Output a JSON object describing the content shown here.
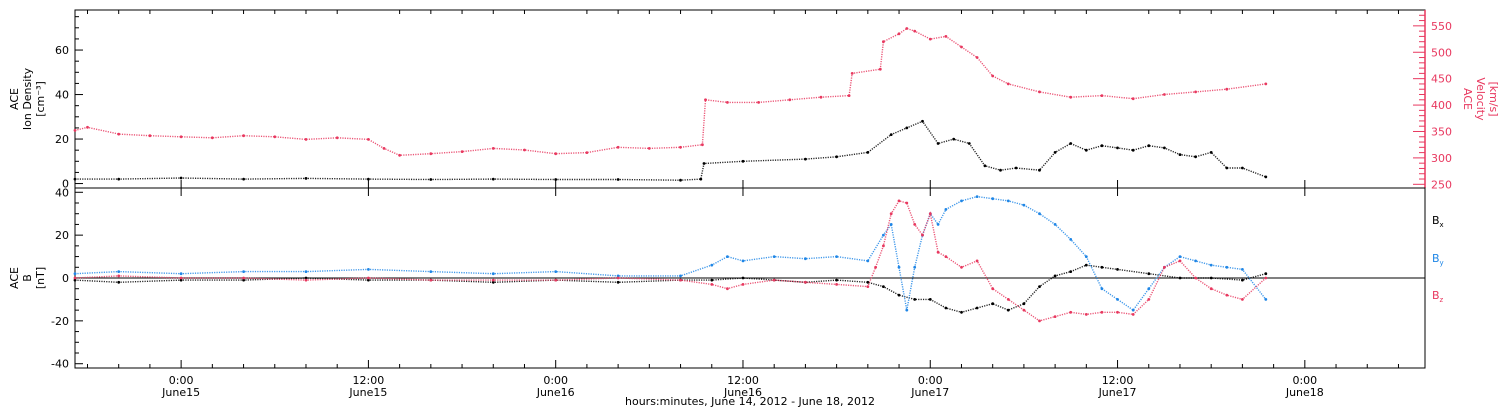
{
  "colors": {
    "axis": "#000000",
    "density": "#000000",
    "velocity": "#e8385f",
    "bx": "#000000",
    "by": "#1f86e6",
    "bz": "#e8385f"
  },
  "x_axis": {
    "title": "hours:minutes, June 14, 2012 - June 18, 2012",
    "range_hours": [
      -6.8,
      79.7
    ],
    "ticks": [
      {
        "t": 0,
        "time": "0:00",
        "date": "June15"
      },
      {
        "t": 12,
        "time": "12:00",
        "date": "June15"
      },
      {
        "t": 24,
        "time": "0:00",
        "date": "June16"
      },
      {
        "t": 36,
        "time": "12:00",
        "date": "June16"
      },
      {
        "t": 48,
        "time": "0:00",
        "date": "June17"
      },
      {
        "t": 60,
        "time": "12:00",
        "date": "June17"
      },
      {
        "t": 72,
        "time": "0:00",
        "date": "June18"
      }
    ]
  },
  "chart_data": [
    {
      "type": "scatter",
      "panel": "top",
      "left_axis": {
        "label_lines": [
          "ACE",
          "Ion Density",
          "[cm⁻³]"
        ],
        "ylim": [
          -2,
          78
        ],
        "ticks": [
          0,
          20,
          40,
          60
        ]
      },
      "right_axis": {
        "label_lines": [
          "ACE",
          "Velocity",
          "[km/s]"
        ],
        "ylim": [
          243,
          580
        ],
        "ticks": [
          250,
          300,
          350,
          400,
          450,
          500,
          550
        ]
      },
      "series": [
        {
          "key": "density",
          "axis": "left",
          "x": [
            -6.8,
            -4,
            0,
            4,
            8,
            12,
            16,
            20,
            24,
            28,
            32,
            33.3,
            33.5,
            36,
            40,
            42,
            44,
            45.5,
            46.5,
            47.5,
            48.5,
            49.5,
            50.5,
            51.5,
            52.5,
            53.5,
            55,
            56,
            57,
            58,
            59,
            60,
            61,
            62,
            63,
            64,
            65,
            66,
            67,
            68,
            69.5
          ],
          "y": [
            2,
            2,
            2.5,
            2,
            2.3,
            2,
            1.8,
            2,
            1.8,
            1.8,
            1.5,
            2,
            9,
            10,
            11,
            12,
            14,
            22,
            25,
            28,
            18,
            20,
            18,
            8,
            6,
            7,
            6,
            14,
            18,
            15,
            17,
            16,
            15,
            17,
            16,
            13,
            12,
            14,
            7,
            7,
            3
          ]
        },
        {
          "key": "velocity",
          "axis": "right",
          "x": [
            -6.8,
            -6,
            -4,
            -2,
            0,
            2,
            4,
            6,
            8,
            10,
            12,
            13,
            14,
            16,
            18,
            20,
            22,
            24,
            26,
            28,
            30,
            32,
            33.4,
            33.6,
            35,
            37,
            39,
            41,
            42.8,
            43,
            44.8,
            45,
            46,
            46.5,
            47,
            48,
            49,
            50,
            51,
            52,
            53,
            55,
            57,
            59,
            61,
            63,
            65,
            67,
            69.5
          ],
          "y": [
            352,
            358,
            345,
            342,
            340,
            338,
            342,
            340,
            335,
            338,
            335,
            318,
            305,
            308,
            312,
            318,
            315,
            308,
            310,
            320,
            318,
            320,
            325,
            410,
            405,
            405,
            410,
            415,
            418,
            460,
            468,
            520,
            535,
            545,
            540,
            525,
            530,
            510,
            490,
            455,
            440,
            425,
            415,
            418,
            412,
            420,
            425,
            430,
            440
          ]
        }
      ]
    },
    {
      "type": "scatter",
      "panel": "bottom",
      "left_axis": {
        "label_lines": [
          "ACE",
          "B",
          "[nT]"
        ],
        "ylim": [
          -42,
          42
        ],
        "ticks": [
          -40,
          -20,
          0,
          20,
          40
        ]
      },
      "zero_line": 0,
      "series": [
        {
          "key": "bx",
          "name": "B",
          "subscript": "x",
          "x": [
            -6.8,
            -4,
            0,
            4,
            8,
            12,
            16,
            20,
            24,
            28,
            32,
            34,
            36,
            38,
            40,
            42,
            44,
            45,
            46,
            47,
            48,
            49,
            50,
            51,
            52,
            53,
            54,
            55,
            56,
            57,
            58,
            59,
            60,
            62,
            64,
            66,
            68,
            69.5
          ],
          "y": [
            -1,
            -2,
            -1,
            -1,
            0,
            -1,
            -1,
            -2,
            -1,
            -2,
            -1,
            -1,
            0,
            -1,
            -2,
            -1,
            -2,
            -4,
            -8,
            -10,
            -10,
            -14,
            -16,
            -14,
            -12,
            -15,
            -12,
            -4,
            1,
            3,
            6,
            5,
            4,
            2,
            0,
            0,
            -1,
            2
          ]
        },
        {
          "key": "by",
          "name": "B",
          "subscript": "y",
          "x": [
            -6.8,
            -4,
            0,
            4,
            8,
            12,
            16,
            20,
            24,
            28,
            32,
            34,
            35,
            36,
            38,
            40,
            42,
            44,
            45,
            45.5,
            46,
            46.5,
            47,
            47.5,
            48,
            48.5,
            49,
            50,
            51,
            52,
            53,
            54,
            55,
            56,
            57,
            58,
            59,
            60,
            61,
            62,
            63,
            64,
            65,
            66,
            67,
            68,
            69.5
          ],
          "y": [
            2,
            3,
            2,
            3,
            3,
            4,
            3,
            2,
            3,
            1,
            1,
            6,
            10,
            8,
            10,
            9,
            10,
            8,
            20,
            25,
            5,
            -15,
            5,
            20,
            30,
            25,
            32,
            36,
            38,
            37,
            36,
            34,
            30,
            25,
            18,
            10,
            -5,
            -10,
            -15,
            -5,
            5,
            10,
            8,
            6,
            5,
            4,
            -10
          ]
        },
        {
          "key": "bz",
          "name": "B",
          "subscript": "z",
          "x": [
            -6.8,
            -4,
            0,
            4,
            8,
            12,
            16,
            20,
            24,
            28,
            32,
            34,
            35,
            36,
            38,
            40,
            42,
            44,
            44.5,
            45,
            45.5,
            46,
            46.5,
            47,
            47.5,
            48,
            48.5,
            49,
            50,
            51,
            52,
            53,
            54,
            55,
            56,
            57,
            58,
            59,
            60,
            61,
            62,
            63,
            64,
            65,
            66,
            67,
            68,
            69.5
          ],
          "y": [
            0,
            1,
            0,
            0,
            -1,
            0,
            -1,
            -1,
            -1,
            0,
            -1,
            -3,
            -5,
            -3,
            -1,
            -2,
            -3,
            -4,
            5,
            15,
            30,
            36,
            35,
            25,
            20,
            30,
            12,
            10,
            5,
            8,
            -5,
            -10,
            -15,
            -20,
            -18,
            -16,
            -17,
            -16,
            -16,
            -17,
            -10,
            5,
            8,
            0,
            -5,
            -8,
            -10,
            0
          ]
        }
      ]
    }
  ]
}
